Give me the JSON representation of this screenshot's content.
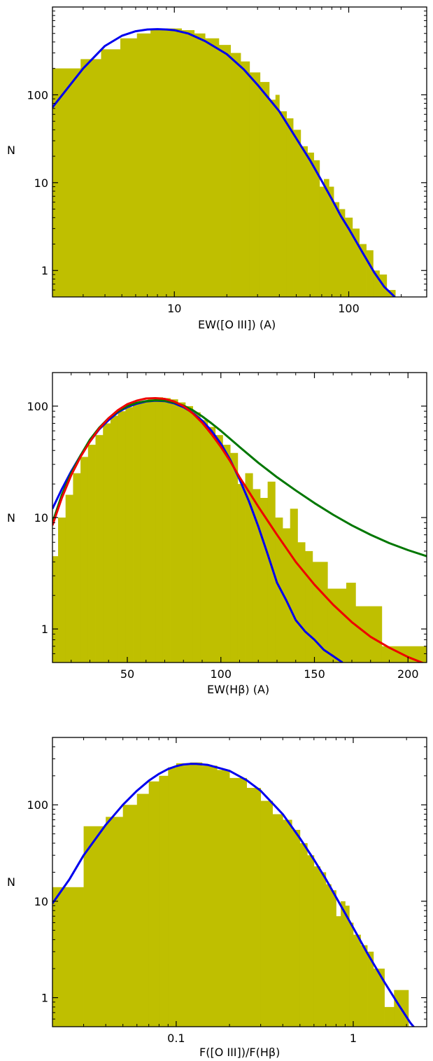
{
  "chart_data": [
    {
      "type": "bar",
      "xlabel": "EW([O III]) (A)",
      "ylabel": "N",
      "xscale": "log",
      "yscale": "log",
      "xlim": [
        2,
        280
      ],
      "ylim": [
        0.5,
        1000
      ],
      "xticks": [
        {
          "value": 10,
          "label": "10"
        },
        {
          "value": 100,
          "label": "100"
        }
      ],
      "yticks": [
        {
          "value": 1,
          "label": "1"
        },
        {
          "value": 10,
          "label": "10"
        },
        {
          "value": 100,
          "label": "100"
        }
      ],
      "hist_color": "#bfbf00",
      "histogram": [
        [
          2.0,
          2.9,
          200
        ],
        [
          2.9,
          3.8,
          255
        ],
        [
          3.8,
          4.9,
          330
        ],
        [
          4.9,
          6.1,
          440
        ],
        [
          6.1,
          7.3,
          500
        ],
        [
          7.3,
          9.0,
          560
        ],
        [
          9.0,
          11,
          570
        ],
        [
          11,
          13,
          545
        ],
        [
          13,
          15,
          500
        ],
        [
          15,
          18,
          440
        ],
        [
          18,
          21,
          370
        ],
        [
          21,
          24,
          300
        ],
        [
          24,
          27,
          240
        ],
        [
          27,
          31,
          180
        ],
        [
          31,
          35,
          140
        ],
        [
          35,
          38,
          88
        ],
        [
          38,
          40,
          100
        ],
        [
          40,
          44,
          65
        ],
        [
          44,
          48,
          54
        ],
        [
          48,
          53,
          40
        ],
        [
          53,
          58,
          26
        ],
        [
          58,
          63,
          22
        ],
        [
          63,
          68,
          18
        ],
        [
          68,
          72,
          9
        ],
        [
          72,
          77,
          11
        ],
        [
          77,
          82,
          9
        ],
        [
          82,
          88,
          6
        ],
        [
          88,
          95,
          5
        ],
        [
          95,
          105,
          4
        ],
        [
          105,
          115,
          3
        ],
        [
          115,
          126,
          2
        ],
        [
          126,
          138,
          1.7
        ],
        [
          138,
          150,
          1
        ],
        [
          150,
          165,
          0.9
        ],
        [
          165,
          185,
          0.6
        ]
      ],
      "series": [
        {
          "color": "#0000ee",
          "points": [
            [
              2,
              72
            ],
            [
              3,
              200
            ],
            [
              4,
              360
            ],
            [
              5,
              470
            ],
            [
              6,
              530
            ],
            [
              7,
              555
            ],
            [
              8,
              560
            ],
            [
              9,
              555
            ],
            [
              10,
              545
            ],
            [
              12,
              500
            ],
            [
              15,
              410
            ],
            [
              20,
              290
            ],
            [
              25,
              195
            ],
            [
              30,
              130
            ],
            [
              40,
              65
            ],
            [
              50,
              32
            ],
            [
              60,
              18
            ],
            [
              70,
              10.5
            ],
            [
              80,
              6.5
            ],
            [
              90,
              4.2
            ],
            [
              100,
              3
            ],
            [
              120,
              1.6
            ],
            [
              140,
              0.95
            ],
            [
              160,
              0.65
            ],
            [
              180,
              0.52
            ],
            [
              192,
              0.45
            ]
          ]
        }
      ]
    },
    {
      "type": "bar",
      "xlabel": "EW(Hβ) (A)",
      "ylabel": "N",
      "xscale": "linear",
      "yscale": "log",
      "xlim": [
        10,
        210
      ],
      "ylim": [
        0.5,
        200
      ],
      "xticks": [
        {
          "value": 50,
          "label": "50"
        },
        {
          "value": 100,
          "label": "100"
        },
        {
          "value": 150,
          "label": "150"
        },
        {
          "value": 200,
          "label": "200"
        }
      ],
      "yticks": [
        {
          "value": 1,
          "label": "1"
        },
        {
          "value": 10,
          "label": "10"
        },
        {
          "value": 100,
          "label": "100"
        }
      ],
      "hist_color": "#bfbf00",
      "histogram": [
        [
          10,
          13,
          4.5
        ],
        [
          13,
          17,
          10
        ],
        [
          17,
          21,
          16
        ],
        [
          21,
          25,
          25
        ],
        [
          25,
          29,
          35
        ],
        [
          29,
          33,
          45
        ],
        [
          33,
          37,
          55
        ],
        [
          37,
          41,
          70
        ],
        [
          41,
          45,
          82
        ],
        [
          45,
          49,
          90
        ],
        [
          49,
          53,
          98
        ],
        [
          53,
          57,
          105
        ],
        [
          57,
          61,
          110
        ],
        [
          61,
          65,
          115
        ],
        [
          65,
          69,
          120
        ],
        [
          69,
          73,
          118
        ],
        [
          73,
          77,
          115
        ],
        [
          77,
          81,
          108
        ],
        [
          81,
          85,
          100
        ],
        [
          85,
          89,
          88
        ],
        [
          89,
          93,
          75
        ],
        [
          93,
          97,
          65
        ],
        [
          97,
          101,
          55
        ],
        [
          101,
          105,
          45
        ],
        [
          105,
          109,
          38
        ],
        [
          109,
          113,
          20
        ],
        [
          113,
          117,
          25
        ],
        [
          117,
          121,
          18
        ],
        [
          121,
          125,
          15
        ],
        [
          125,
          129,
          21
        ],
        [
          129,
          133,
          10
        ],
        [
          133,
          137,
          8
        ],
        [
          137,
          141,
          12
        ],
        [
          141,
          145,
          6
        ],
        [
          145,
          149,
          5
        ],
        [
          149,
          157,
          4
        ],
        [
          157,
          167,
          2.3
        ],
        [
          167,
          172,
          2.6
        ],
        [
          172,
          179,
          1.6
        ],
        [
          179,
          186,
          1.6
        ],
        [
          186,
          210,
          0.7
        ]
      ],
      "series": [
        {
          "color": "#0000ee",
          "points": [
            [
              10,
              12
            ],
            [
              15,
              18
            ],
            [
              20,
              26
            ],
            [
              25,
              36
            ],
            [
              30,
              48
            ],
            [
              35,
              62
            ],
            [
              40,
              75
            ],
            [
              45,
              88
            ],
            [
              50,
              98
            ],
            [
              55,
              105
            ],
            [
              60,
              110
            ],
            [
              65,
              112
            ],
            [
              70,
              111
            ],
            [
              75,
              106
            ],
            [
              80,
              98
            ],
            [
              85,
              87
            ],
            [
              90,
              74
            ],
            [
              95,
              60
            ],
            [
              100,
              46
            ],
            [
              105,
              33
            ],
            [
              110,
              22
            ],
            [
              115,
              14
            ],
            [
              120,
              8.3
            ],
            [
              125,
              4.7
            ],
            [
              130,
              2.6
            ],
            [
              135,
              1.8
            ],
            [
              140,
              1.2
            ],
            [
              145,
              0.95
            ],
            [
              150,
              0.8
            ],
            [
              155,
              0.65
            ],
            [
              160,
              0.57
            ],
            [
              165,
              0.5
            ]
          ]
        },
        {
          "color": "#007700",
          "points": [
            [
              10,
              9
            ],
            [
              15,
              16
            ],
            [
              20,
              25
            ],
            [
              25,
              36
            ],
            [
              30,
              50
            ],
            [
              35,
              64
            ],
            [
              40,
              78
            ],
            [
              45,
              90
            ],
            [
              50,
              100
            ],
            [
              55,
              107
            ],
            [
              60,
              111
            ],
            [
              65,
              113
            ],
            [
              70,
              112
            ],
            [
              75,
              108
            ],
            [
              80,
              101
            ],
            [
              85,
              92
            ],
            [
              90,
              81
            ],
            [
              95,
              70
            ],
            [
              100,
              60
            ],
            [
              110,
              43
            ],
            [
              120,
              31
            ],
            [
              130,
              23
            ],
            [
              140,
              17.5
            ],
            [
              150,
              13.5
            ],
            [
              160,
              10.6
            ],
            [
              170,
              8.5
            ],
            [
              180,
              7
            ],
            [
              190,
              5.9
            ],
            [
              200,
              5.1
            ],
            [
              210,
              4.5
            ]
          ]
        },
        {
          "color": "#ee0000",
          "points": [
            [
              10,
              8.5
            ],
            [
              15,
              15
            ],
            [
              20,
              24
            ],
            [
              25,
              35
            ],
            [
              30,
              48
            ],
            [
              35,
              63
            ],
            [
              40,
              78
            ],
            [
              45,
              92
            ],
            [
              50,
              104
            ],
            [
              55,
              112
            ],
            [
              60,
              117
            ],
            [
              65,
              118
            ],
            [
              70,
              116
            ],
            [
              75,
              110
            ],
            [
              80,
              100
            ],
            [
              85,
              86
            ],
            [
              90,
              71
            ],
            [
              95,
              56
            ],
            [
              100,
              43
            ],
            [
              105,
              32
            ],
            [
              110,
              23
            ],
            [
              115,
              17
            ],
            [
              120,
              12.5
            ],
            [
              130,
              7
            ],
            [
              140,
              4
            ],
            [
              150,
              2.5
            ],
            [
              160,
              1.65
            ],
            [
              170,
              1.15
            ],
            [
              180,
              0.85
            ],
            [
              190,
              0.68
            ],
            [
              200,
              0.56
            ],
            [
              210,
              0.48
            ]
          ]
        }
      ]
    },
    {
      "type": "bar",
      "xlabel": "F([O III])/F(Hβ)",
      "ylabel": "N",
      "xscale": "log",
      "yscale": "log",
      "xlim": [
        0.02,
        2.6
      ],
      "ylim": [
        0.5,
        500
      ],
      "xticks": [
        {
          "value": 0.1,
          "label": "0.1"
        },
        {
          "value": 1,
          "label": "1"
        }
      ],
      "yticks": [
        {
          "value": 1,
          "label": "1"
        },
        {
          "value": 10,
          "label": "10"
        },
        {
          "value": 100,
          "label": "100"
        }
      ],
      "hist_color": "#bfbf00",
      "histogram": [
        [
          0.02,
          0.03,
          14
        ],
        [
          0.03,
          0.04,
          60
        ],
        [
          0.04,
          0.05,
          75
        ],
        [
          0.05,
          0.06,
          100
        ],
        [
          0.06,
          0.07,
          130
        ],
        [
          0.07,
          0.08,
          175
        ],
        [
          0.08,
          0.09,
          200
        ],
        [
          0.09,
          0.1,
          245
        ],
        [
          0.1,
          0.12,
          270
        ],
        [
          0.12,
          0.14,
          275
        ],
        [
          0.14,
          0.17,
          255
        ],
        [
          0.17,
          0.2,
          230
        ],
        [
          0.2,
          0.25,
          190
        ],
        [
          0.25,
          0.3,
          150
        ],
        [
          0.3,
          0.35,
          110
        ],
        [
          0.35,
          0.4,
          80
        ],
        [
          0.4,
          0.45,
          70
        ],
        [
          0.45,
          0.5,
          55
        ],
        [
          0.5,
          0.55,
          40
        ],
        [
          0.55,
          0.6,
          30
        ],
        [
          0.6,
          0.65,
          23
        ],
        [
          0.65,
          0.7,
          20
        ],
        [
          0.7,
          0.75,
          15
        ],
        [
          0.75,
          0.8,
          13
        ],
        [
          0.8,
          0.85,
          7
        ],
        [
          0.85,
          0.9,
          10
        ],
        [
          0.9,
          0.95,
          9
        ],
        [
          0.95,
          1.0,
          6
        ],
        [
          1.0,
          1.1,
          4.5
        ],
        [
          1.1,
          1.2,
          3.5
        ],
        [
          1.2,
          1.3,
          3
        ],
        [
          1.3,
          1.5,
          2
        ],
        [
          1.5,
          1.7,
          0.8
        ],
        [
          1.7,
          2.05,
          1.2
        ]
      ],
      "series": [
        {
          "color": "#0000ee",
          "points": [
            [
              0.02,
              9.5
            ],
            [
              0.025,
              17
            ],
            [
              0.03,
              30
            ],
            [
              0.04,
              62
            ],
            [
              0.05,
              100
            ],
            [
              0.06,
              140
            ],
            [
              0.07,
              178
            ],
            [
              0.08,
              210
            ],
            [
              0.09,
              235
            ],
            [
              0.1,
              252
            ],
            [
              0.11,
              262
            ],
            [
              0.12,
              266
            ],
            [
              0.13,
              266
            ],
            [
              0.15,
              260
            ],
            [
              0.2,
              225
            ],
            [
              0.25,
              180
            ],
            [
              0.3,
              140
            ],
            [
              0.4,
              80
            ],
            [
              0.5,
              45
            ],
            [
              0.6,
              27
            ],
            [
              0.7,
              17
            ],
            [
              0.8,
              11
            ],
            [
              0.9,
              7.5
            ],
            [
              1.0,
              5.3
            ],
            [
              1.2,
              2.9
            ],
            [
              1.5,
              1.45
            ],
            [
              1.8,
              0.85
            ],
            [
              2.1,
              0.55
            ],
            [
              2.3,
              0.45
            ]
          ]
        }
      ]
    }
  ]
}
